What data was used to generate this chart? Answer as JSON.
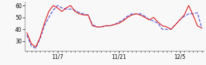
{
  "red_y": [
    37,
    28,
    25,
    33,
    45,
    55,
    60,
    58,
    55,
    58,
    60,
    55,
    53,
    52,
    52,
    43,
    42,
    42,
    43,
    43,
    44,
    45,
    47,
    50,
    52,
    53,
    52,
    50,
    48,
    50,
    46,
    43,
    42,
    40,
    44,
    48,
    52,
    60,
    52,
    43,
    41
  ],
  "blue_y": [
    35,
    26,
    24,
    32,
    43,
    50,
    56,
    60,
    58,
    57,
    57,
    56,
    54,
    53,
    52,
    44,
    42,
    42,
    43,
    43,
    44,
    46,
    48,
    51,
    53,
    53,
    53,
    51,
    48,
    47,
    45,
    40,
    40,
    40,
    44,
    48,
    51,
    53,
    53,
    54,
    41
  ],
  "x_tick_positions": [
    7,
    21,
    35
  ],
  "x_tick_labels": [
    "11/7",
    "11/21",
    "12/5"
  ],
  "ylim": [
    22,
    63
  ],
  "yticks": [
    30,
    40,
    50,
    60
  ],
  "red_color": "#dd2222",
  "blue_color": "#5555dd",
  "bg_color": "#f8f8f8",
  "linewidth": 0.9,
  "n_points": 41,
  "figsize": [
    3.0,
    0.96
  ],
  "dpi": 100
}
